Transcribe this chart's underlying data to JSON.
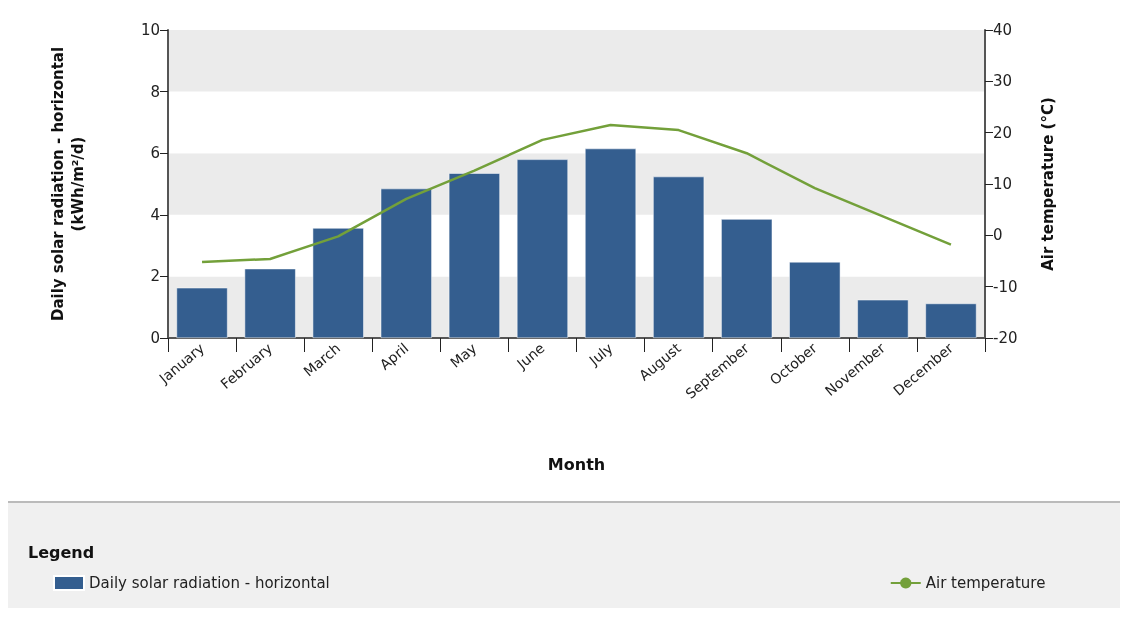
{
  "chart_data": {
    "type": "bar",
    "xlabel": "Month",
    "ylabel": "Daily solar radiation - horizontal\n(kWh/m²/d)",
    "y2label": "Air temperature (°C)",
    "legend_title": "Legend",
    "categories": [
      "January",
      "February",
      "March",
      "April",
      "May",
      "June",
      "July",
      "August",
      "September",
      "October",
      "November",
      "December"
    ],
    "series": [
      {
        "name": "Daily solar radiation - horizontal",
        "color": "#345e8f",
        "values": [
          1.63,
          2.25,
          3.57,
          4.85,
          5.35,
          5.8,
          6.15,
          5.24,
          3.86,
          2.47,
          1.24,
          1.12
        ]
      },
      {
        "name": "Air temperature",
        "type": "line",
        "axis": "y2",
        "color": "#73a03a",
        "values": [
          -5.2,
          -4.6,
          -0.2,
          7.1,
          12.6,
          18.6,
          21.5,
          20.5,
          16.0,
          9.2,
          3.7,
          -1.8
        ]
      }
    ],
    "ylim": [
      0,
      10
    ],
    "yticks": [
      0,
      2,
      4,
      6,
      8,
      10
    ],
    "y2lim": [
      -20,
      40
    ],
    "y2ticks": [
      -20,
      -10,
      0,
      10,
      20,
      30,
      40
    ],
    "legend": "bottom",
    "marker": "none"
  }
}
